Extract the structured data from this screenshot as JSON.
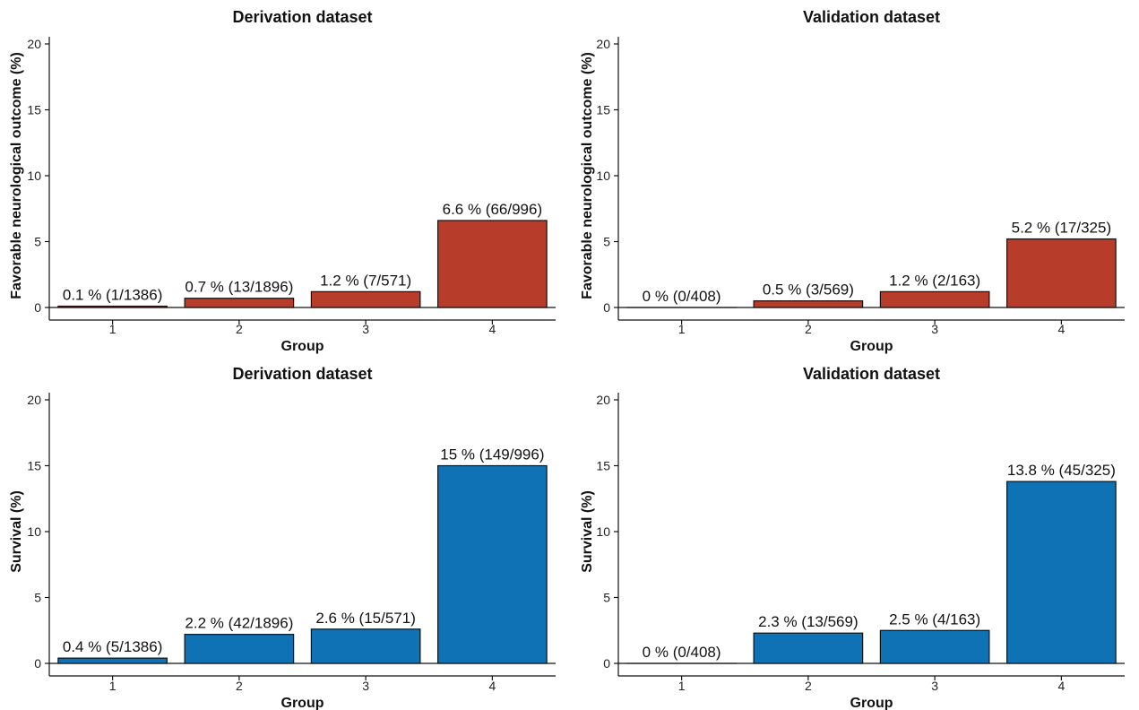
{
  "chart_data": [
    {
      "type": "bar",
      "title": "Derivation dataset",
      "xlabel": "Group",
      "ylabel": "Favorable neurological outcome (%)",
      "categories": [
        "1",
        "2",
        "3",
        "4"
      ],
      "values": [
        0.1,
        0.7,
        1.2,
        6.6
      ],
      "labels": [
        "0.1 % (1/1386)",
        "0.7 % (13/1896)",
        "1.2 % (7/571)",
        "6.6 % (66/996)"
      ],
      "ylim": [
        0,
        20
      ],
      "yticks": [
        0,
        5,
        10,
        15,
        20
      ],
      "color": "#b83c2a",
      "grid": false
    },
    {
      "type": "bar",
      "title": "Validation dataset",
      "xlabel": "Group",
      "ylabel": "Favorable neurological outcome (%)",
      "categories": [
        "1",
        "2",
        "3",
        "4"
      ],
      "values": [
        0,
        0.5,
        1.2,
        5.2
      ],
      "labels": [
        "0 % (0/408)",
        "0.5 % (3/569)",
        "1.2 % (2/163)",
        "5.2 % (17/325)"
      ],
      "ylim": [
        0,
        20
      ],
      "yticks": [
        0,
        5,
        10,
        15,
        20
      ],
      "color": "#b83c2a",
      "grid": false
    },
    {
      "type": "bar",
      "title": "Derivation dataset",
      "xlabel": "Group",
      "ylabel": "Survival (%)",
      "categories": [
        "1",
        "2",
        "3",
        "4"
      ],
      "values": [
        0.4,
        2.2,
        2.6,
        15
      ],
      "labels": [
        "0.4 % (5/1386)",
        "2.2 % (42/1896)",
        "2.6 % (15/571)",
        "15 % (149/996)"
      ],
      "ylim": [
        0,
        20
      ],
      "yticks": [
        0,
        5,
        10,
        15,
        20
      ],
      "color": "#0f72b4",
      "grid": false
    },
    {
      "type": "bar",
      "title": "Validation dataset",
      "xlabel": "Group",
      "ylabel": "Survival (%)",
      "categories": [
        "1",
        "2",
        "3",
        "4"
      ],
      "values": [
        0,
        2.3,
        2.5,
        13.8
      ],
      "labels": [
        "0 % (0/408)",
        "2.3 % (13/569)",
        "2.5 % (4/163)",
        "13.8 % (45/325)"
      ],
      "ylim": [
        0,
        20
      ],
      "yticks": [
        0,
        5,
        10,
        15,
        20
      ],
      "color": "#0f72b4",
      "grid": false
    }
  ]
}
